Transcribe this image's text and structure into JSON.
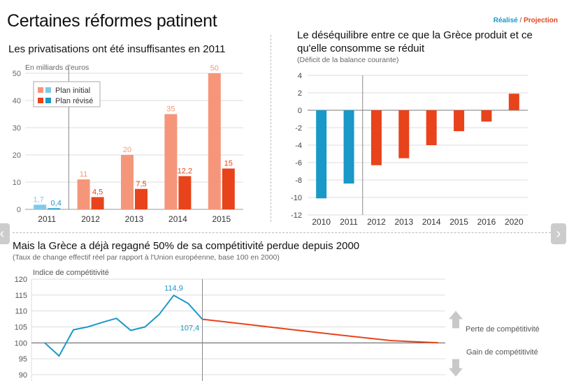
{
  "page": {
    "title": "Certaines réformes patinent",
    "legend": {
      "realised": "Réalisé",
      "sep": "/",
      "projection": "Projection"
    }
  },
  "colors": {
    "blue": "#1a98c8",
    "light_blue": "#7fc9ea",
    "red": "#e8431a",
    "salmon": "#f5967a",
    "axis": "#999999",
    "grid": "#dddddd"
  },
  "nav": {
    "prev_icon": "chevron-left-icon",
    "next_icon": "chevron-right-icon",
    "prev_glyph": "‹",
    "next_glyph": "›"
  },
  "chart_data": [
    {
      "type": "bar",
      "title": "Les privatisations ont été insuffisantes en 2011",
      "ylabel": "En milliards d'euros",
      "categories": [
        "2011",
        "2012",
        "2013",
        "2014",
        "2015"
      ],
      "series": [
        {
          "name": "Plan initial",
          "values": [
            1.7,
            11,
            20,
            35,
            50
          ],
          "labels": [
            "1,7",
            "11",
            "20",
            "35",
            "50"
          ]
        },
        {
          "name": "Plan révisé",
          "values": [
            0.4,
            4.5,
            7.5,
            12.2,
            15
          ],
          "labels": [
            "0,4",
            "4,5",
            "7,5",
            "12,2",
            "15"
          ]
        }
      ],
      "ylim": [
        0,
        50
      ],
      "yticks": [
        0,
        10,
        20,
        30,
        40,
        50
      ],
      "legend_position": "top-left",
      "grid": true
    },
    {
      "type": "bar",
      "title": "Le déséquilibre entre ce que la Grèce produit et ce qu'elle consomme se réduit",
      "subtitle": "(Déficit de la balance courante)",
      "categories": [
        "2010",
        "2011",
        "2012",
        "2013",
        "2014",
        "2015",
        "2016",
        "2020"
      ],
      "values": [
        -10.1,
        -8.4,
        -6.3,
        -5.5,
        -4.0,
        -2.4,
        -1.3,
        1.9
      ],
      "ylim": [
        -12,
        4
      ],
      "yticks": [
        4,
        2,
        0,
        -2,
        -4,
        -6,
        -8,
        -10,
        -12
      ],
      "ytick_labels": [
        "4",
        "2",
        "0",
        "-2",
        "-4",
        "-6",
        "-8",
        "-10",
        "-12"
      ],
      "grid": true
    },
    {
      "type": "line",
      "title": "Mais la Grèce a déjà regagné 50% de sa compétitivité perdue depuis 2000",
      "subtitle": "(Taux de change effectif réel par rapport à l'Union européenne, base 100 en 2000)",
      "ylabel": "Indice de compétitivité",
      "ylim": [
        90,
        120
      ],
      "yticks": [
        90,
        95,
        100,
        105,
        110,
        115,
        120
      ],
      "series": [
        {
          "values": [
            100,
            95.9,
            104.1,
            105,
            106.4,
            107.7,
            103.9,
            105,
            109,
            114.9,
            112.4,
            107.4
          ]
        },
        {
          "values": [
            107.4,
            105.7,
            104,
            102.3,
            100.7,
            100
          ]
        }
      ],
      "annotations": [
        {
          "point": 9,
          "label": "114,9"
        },
        {
          "point": 11,
          "label": "107,4"
        }
      ],
      "side_labels": {
        "up": "Perte de compétitivité",
        "down": "Gain de compétitivité"
      },
      "grid": true
    }
  ]
}
